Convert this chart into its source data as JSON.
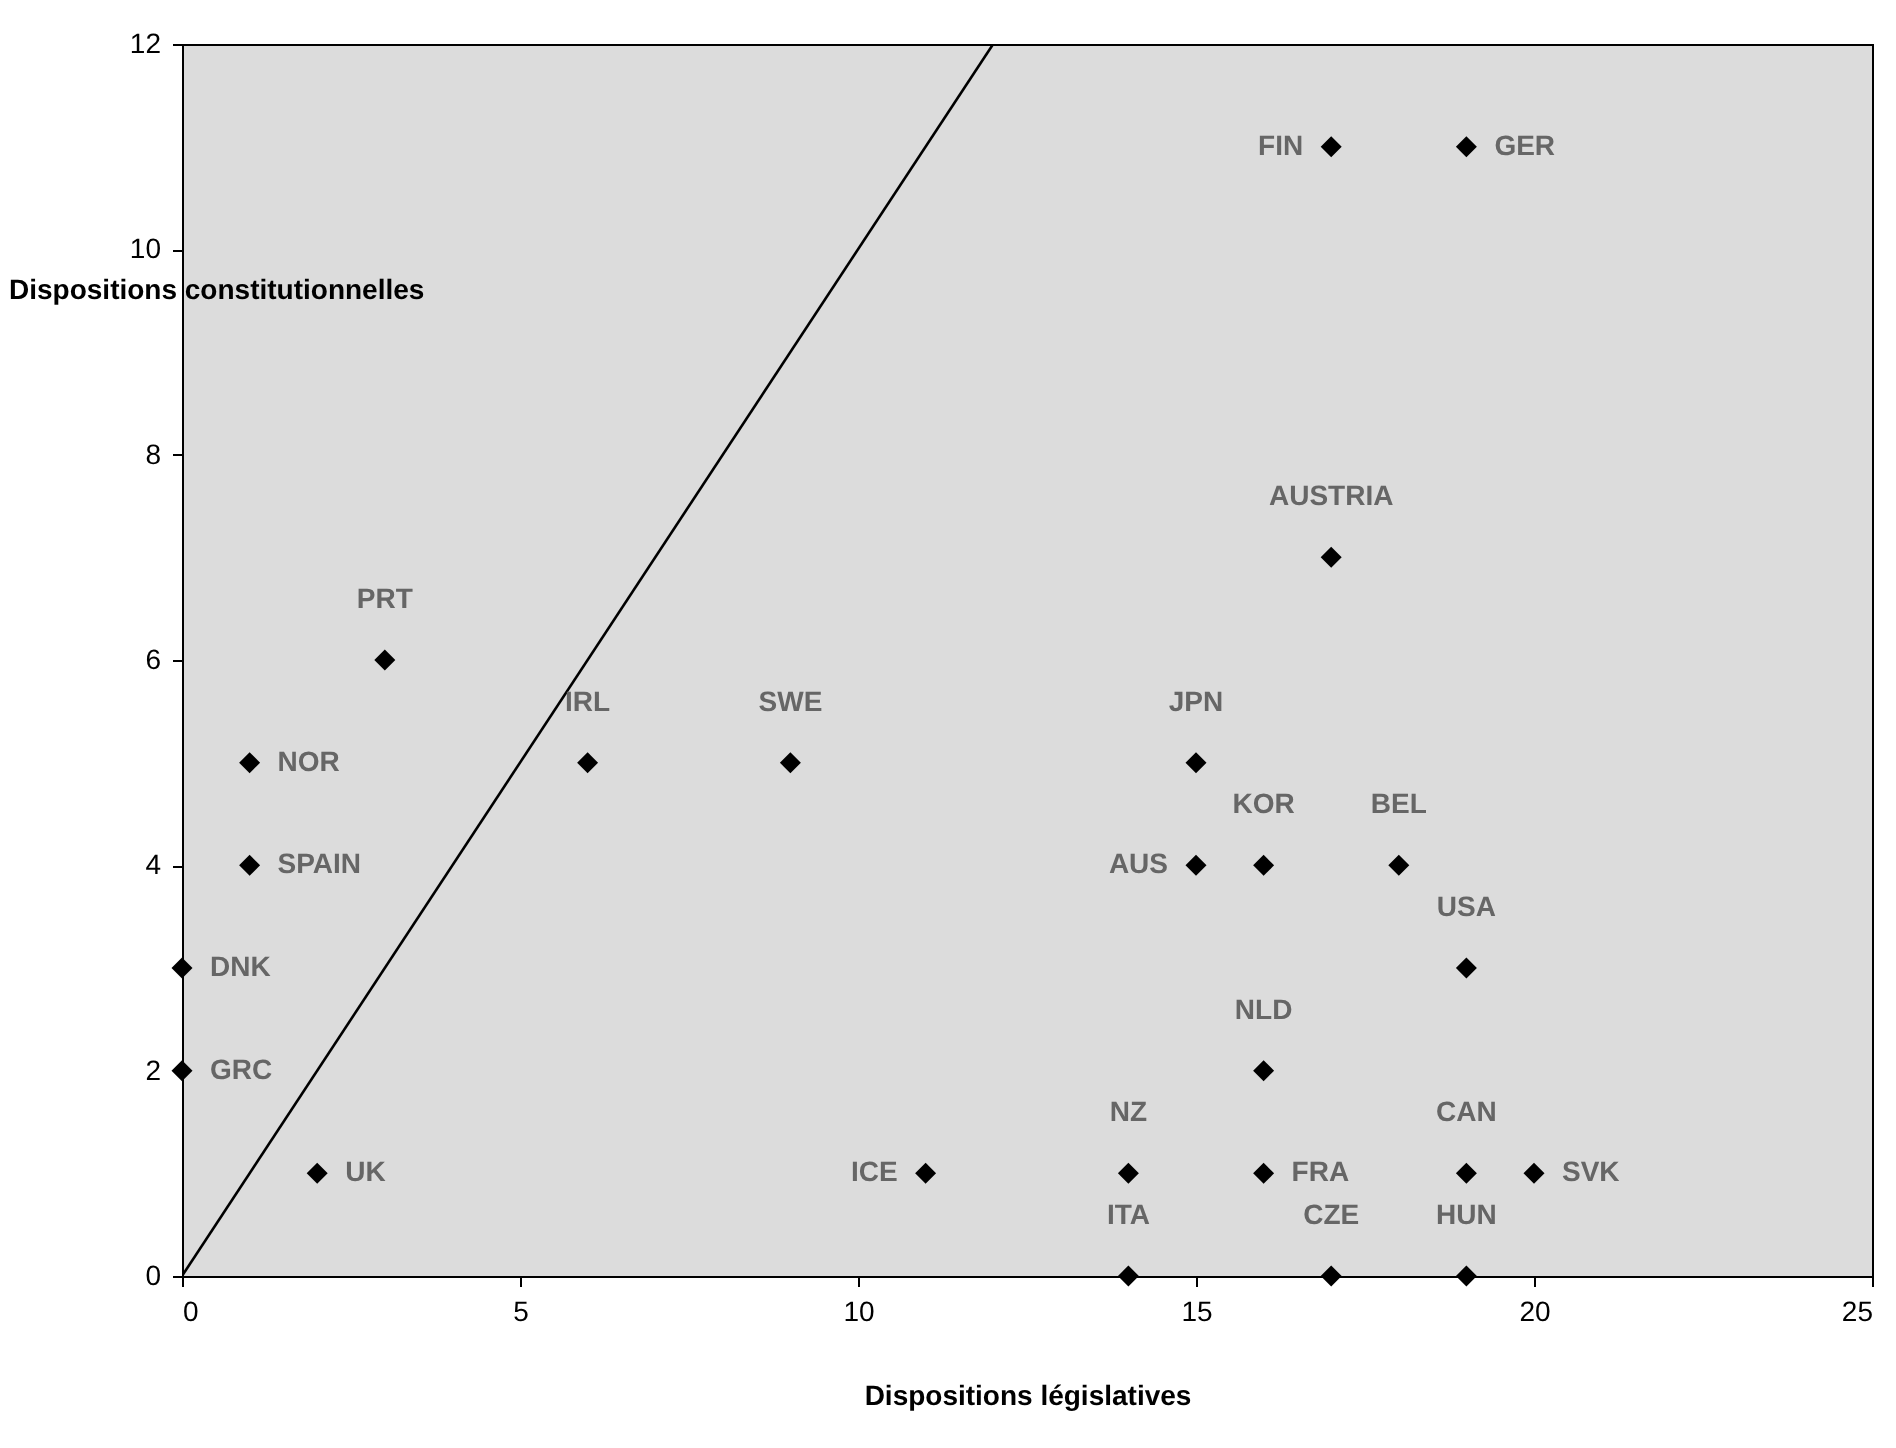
{
  "chart_data": {
    "type": "scatter",
    "xlabel": "Dispositions législatives",
    "ylabel": "Dispositions constitutionnelles",
    "xlim": [
      0,
      25
    ],
    "xticks": [
      0,
      5,
      10,
      15,
      20,
      25
    ],
    "ylim": [
      0,
      12
    ],
    "yticks": [
      0,
      2,
      4,
      6,
      8,
      10,
      12
    ],
    "grid": false,
    "series": [
      {
        "color": "#000000",
        "marker": "diamond",
        "x": [
          17,
          19,
          17,
          3,
          6,
          9,
          15,
          1,
          1,
          15,
          16,
          18,
          19,
          0,
          0,
          16,
          2,
          11,
          14,
          16,
          19,
          20,
          14,
          17,
          19
        ],
        "values": [
          11,
          11,
          7,
          6,
          5,
          5,
          5,
          5,
          4,
          4,
          4,
          4,
          3,
          3,
          2,
          2,
          1,
          1,
          1,
          1,
          1,
          1,
          0,
          0,
          0
        ]
      },
      {
        "type": "line",
        "color": "#000000",
        "line_style": "solid",
        "marker": "none",
        "x": [
          0,
          12
        ],
        "values": [
          0,
          12
        ]
      }
    ],
    "annotations": [
      {
        "text": "FIN",
        "x": 17,
        "y": 11
      },
      {
        "text": "GER",
        "x": 19,
        "y": 11
      },
      {
        "text": "AUSTRIA",
        "x": 17,
        "y": 7
      },
      {
        "text": "PRT",
        "x": 3,
        "y": 6
      },
      {
        "text": "IRL",
        "x": 6,
        "y": 5
      },
      {
        "text": "SWE",
        "x": 9,
        "y": 5
      },
      {
        "text": "JPN",
        "x": 15,
        "y": 5
      },
      {
        "text": "NOR",
        "x": 1,
        "y": 5
      },
      {
        "text": "SPAIN",
        "x": 1,
        "y": 4
      },
      {
        "text": "AUS",
        "x": 15,
        "y": 4
      },
      {
        "text": "KOR",
        "x": 16,
        "y": 4
      },
      {
        "text": "BEL",
        "x": 18,
        "y": 4
      },
      {
        "text": "USA",
        "x": 19,
        "y": 3
      },
      {
        "text": "DNK",
        "x": 0,
        "y": 3
      },
      {
        "text": "GRC",
        "x": 0,
        "y": 2
      },
      {
        "text": "NLD",
        "x": 16,
        "y": 2
      },
      {
        "text": "UK",
        "x": 2,
        "y": 1
      },
      {
        "text": "ICE",
        "x": 11,
        "y": 1
      },
      {
        "text": "NZ",
        "x": 14,
        "y": 1
      },
      {
        "text": "FRA",
        "x": 16,
        "y": 1
      },
      {
        "text": "CAN",
        "x": 19,
        "y": 1
      },
      {
        "text": "SVK",
        "x": 20,
        "y": 1
      },
      {
        "text": "ITA",
        "x": 14,
        "y": 0
      },
      {
        "text": "CZE",
        "x": 17,
        "y": 0
      },
      {
        "text": "HUN",
        "x": 19,
        "y": 0
      }
    ]
  }
}
